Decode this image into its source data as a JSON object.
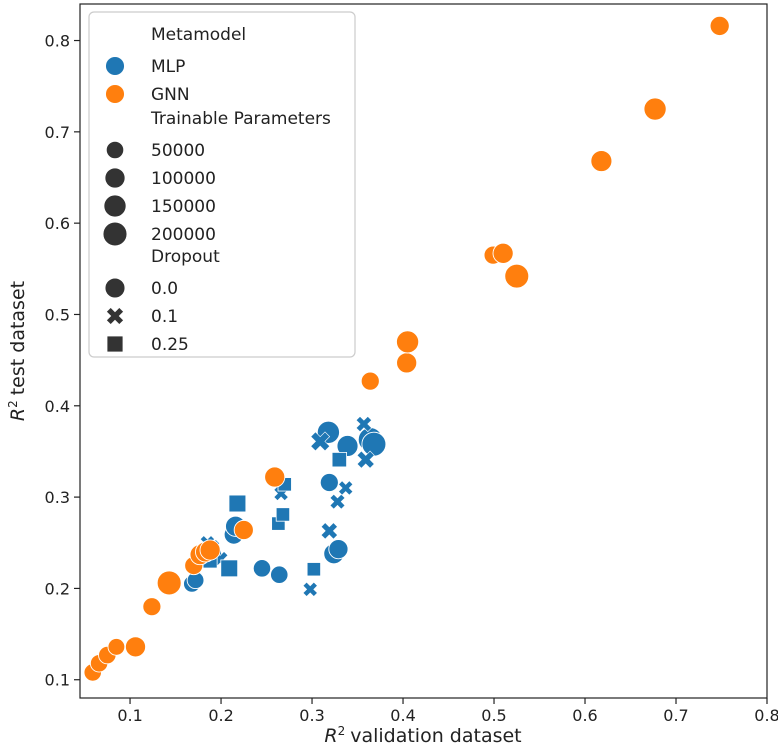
{
  "chart_data": {
    "type": "scatter",
    "title": "",
    "xlabel_sup": "2",
    "xlabel_text": "validation dataset",
    "ylabel_sup": "2",
    "ylabel_text": "test dataset",
    "axis_variable": "R",
    "xlim": [
      0.045,
      0.8
    ],
    "ylim": [
      0.08,
      0.84
    ],
    "xticks": [
      0.1,
      0.2,
      0.3,
      0.4,
      0.5,
      0.6,
      0.7,
      0.8
    ],
    "xtick_labels": [
      "0.1",
      "0.2",
      "0.3",
      "0.4",
      "0.5",
      "0.6",
      "0.7",
      "0.8"
    ],
    "yticks": [
      0.1,
      0.2,
      0.3,
      0.4,
      0.5,
      0.6,
      0.7,
      0.8
    ],
    "ytick_labels": [
      "0.1",
      "0.2",
      "0.3",
      "0.4",
      "0.5",
      "0.6",
      "0.7",
      "0.8"
    ],
    "grid": false,
    "legend_position": "top-left",
    "legend": {
      "hue_title": "Metamodel",
      "hue_entries": [
        {
          "label": "MLP",
          "color": "#1f77b4"
        },
        {
          "label": "GNN",
          "color": "#ff7f0e"
        }
      ],
      "size_title": "Trainable Parameters",
      "size_entries": [
        {
          "label": "50000",
          "value": 50000
        },
        {
          "label": "100000",
          "value": 100000
        },
        {
          "label": "150000",
          "value": 150000
        },
        {
          "label": "200000",
          "value": 200000
        }
      ],
      "style_title": "Dropout",
      "style_entries": [
        {
          "label": "0.0",
          "marker": "circle"
        },
        {
          "label": "0.1",
          "marker": "x"
        },
        {
          "label": "0.25",
          "marker": "square"
        }
      ]
    },
    "series": [
      {
        "name": "MLP",
        "color": "#1f77b4",
        "points": [
          {
            "x": 0.168,
            "y": 0.205,
            "params": 40000,
            "marker": "circle"
          },
          {
            "x": 0.172,
            "y": 0.209,
            "params": 40000,
            "marker": "circle"
          },
          {
            "x": 0.189,
            "y": 0.238,
            "params": 120000,
            "marker": "circle"
          },
          {
            "x": 0.214,
            "y": 0.259,
            "params": 80000,
            "marker": "circle"
          },
          {
            "x": 0.216,
            "y": 0.268,
            "params": 100000,
            "marker": "circle"
          },
          {
            "x": 0.245,
            "y": 0.222,
            "params": 50000,
            "marker": "circle"
          },
          {
            "x": 0.264,
            "y": 0.215,
            "params": 50000,
            "marker": "circle"
          },
          {
            "x": 0.319,
            "y": 0.316,
            "params": 60000,
            "marker": "circle"
          },
          {
            "x": 0.324,
            "y": 0.238,
            "params": 100000,
            "marker": "circle"
          },
          {
            "x": 0.329,
            "y": 0.243,
            "params": 80000,
            "marker": "circle"
          },
          {
            "x": 0.318,
            "y": 0.371,
            "params": 150000,
            "marker": "circle"
          },
          {
            "x": 0.339,
            "y": 0.356,
            "params": 120000,
            "marker": "circle"
          },
          {
            "x": 0.364,
            "y": 0.363,
            "params": 200000,
            "marker": "circle"
          },
          {
            "x": 0.368,
            "y": 0.358,
            "params": 200000,
            "marker": "circle"
          },
          {
            "x": 0.185,
            "y": 0.25,
            "params": 40000,
            "marker": "x"
          },
          {
            "x": 0.19,
            "y": 0.245,
            "params": 60000,
            "marker": "x"
          },
          {
            "x": 0.199,
            "y": 0.232,
            "params": 60000,
            "marker": "x"
          },
          {
            "x": 0.266,
            "y": 0.304,
            "params": 40000,
            "marker": "x"
          },
          {
            "x": 0.298,
            "y": 0.199,
            "params": 40000,
            "marker": "x"
          },
          {
            "x": 0.309,
            "y": 0.361,
            "params": 150000,
            "marker": "x"
          },
          {
            "x": 0.319,
            "y": 0.263,
            "params": 80000,
            "marker": "x"
          },
          {
            "x": 0.328,
            "y": 0.295,
            "params": 50000,
            "marker": "x"
          },
          {
            "x": 0.337,
            "y": 0.31,
            "params": 40000,
            "marker": "x"
          },
          {
            "x": 0.357,
            "y": 0.38,
            "params": 60000,
            "marker": "x"
          },
          {
            "x": 0.359,
            "y": 0.341,
            "params": 100000,
            "marker": "x"
          },
          {
            "x": 0.188,
            "y": 0.23,
            "params": 50000,
            "marker": "square"
          },
          {
            "x": 0.209,
            "y": 0.222,
            "params": 120000,
            "marker": "square"
          },
          {
            "x": 0.218,
            "y": 0.293,
            "params": 120000,
            "marker": "square"
          },
          {
            "x": 0.263,
            "y": 0.271,
            "params": 40000,
            "marker": "square"
          },
          {
            "x": 0.268,
            "y": 0.281,
            "params": 40000,
            "marker": "square"
          },
          {
            "x": 0.27,
            "y": 0.314,
            "params": 40000,
            "marker": "square"
          },
          {
            "x": 0.302,
            "y": 0.221,
            "params": 40000,
            "marker": "square"
          },
          {
            "x": 0.33,
            "y": 0.341,
            "params": 60000,
            "marker": "square"
          }
        ]
      },
      {
        "name": "GNN",
        "color": "#ff7f0e",
        "points": [
          {
            "x": 0.059,
            "y": 0.108,
            "params": 50000,
            "marker": "circle"
          },
          {
            "x": 0.066,
            "y": 0.118,
            "params": 50000,
            "marker": "circle"
          },
          {
            "x": 0.075,
            "y": 0.127,
            "params": 50000,
            "marker": "circle"
          },
          {
            "x": 0.085,
            "y": 0.136,
            "params": 40000,
            "marker": "circle"
          },
          {
            "x": 0.106,
            "y": 0.136,
            "params": 100000,
            "marker": "circle"
          },
          {
            "x": 0.124,
            "y": 0.18,
            "params": 60000,
            "marker": "circle"
          },
          {
            "x": 0.143,
            "y": 0.206,
            "params": 200000,
            "marker": "circle"
          },
          {
            "x": 0.17,
            "y": 0.225,
            "params": 60000,
            "marker": "circle"
          },
          {
            "x": 0.177,
            "y": 0.237,
            "params": 100000,
            "marker": "circle"
          },
          {
            "x": 0.183,
            "y": 0.24,
            "params": 100000,
            "marker": "circle"
          },
          {
            "x": 0.188,
            "y": 0.242,
            "params": 100000,
            "marker": "circle"
          },
          {
            "x": 0.225,
            "y": 0.264,
            "params": 80000,
            "marker": "circle"
          },
          {
            "x": 0.259,
            "y": 0.322,
            "params": 100000,
            "marker": "circle"
          },
          {
            "x": 0.364,
            "y": 0.427,
            "params": 60000,
            "marker": "circle"
          },
          {
            "x": 0.404,
            "y": 0.447,
            "params": 100000,
            "marker": "circle"
          },
          {
            "x": 0.405,
            "y": 0.47,
            "params": 150000,
            "marker": "circle"
          },
          {
            "x": 0.499,
            "y": 0.565,
            "params": 60000,
            "marker": "circle"
          },
          {
            "x": 0.51,
            "y": 0.567,
            "params": 100000,
            "marker": "circle"
          },
          {
            "x": 0.525,
            "y": 0.542,
            "params": 200000,
            "marker": "circle"
          },
          {
            "x": 0.618,
            "y": 0.668,
            "params": 120000,
            "marker": "circle"
          },
          {
            "x": 0.677,
            "y": 0.725,
            "params": 150000,
            "marker": "circle"
          },
          {
            "x": 0.748,
            "y": 0.816,
            "params": 80000,
            "marker": "circle"
          }
        ]
      }
    ]
  }
}
